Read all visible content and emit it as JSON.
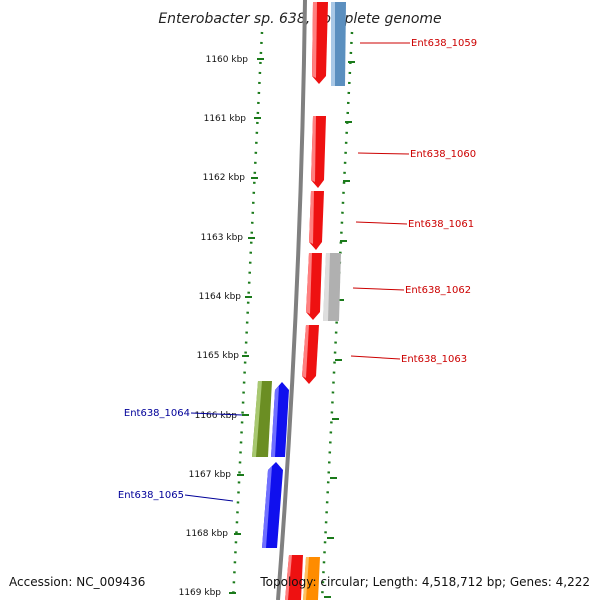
{
  "title": "Enterobacter sp. 638, complete genome",
  "footer": {
    "accession": "Accession: NC_009436",
    "info": "Topology: circular; Length: 4,518,712 bp; Genes: 4,222"
  },
  "colors": {
    "forward_label": "#cc0000",
    "reverse_label": "#000099",
    "ticks": "#1a7a1a",
    "backbone": "#808080"
  },
  "ticks": [
    {
      "label": "1160 kbp"
    },
    {
      "label": "1161 kbp"
    },
    {
      "label": "1162 kbp"
    },
    {
      "label": "1163 kbp"
    },
    {
      "label": "1164 kbp"
    },
    {
      "label": "1165 kbp"
    },
    {
      "label": "1166 kbp"
    },
    {
      "label": "1167 kbp"
    },
    {
      "label": "1168 kbp"
    },
    {
      "label": "1169 kbp"
    }
  ],
  "gene_labels": [
    {
      "text": "Ent638_1059",
      "strand": "forward"
    },
    {
      "text": "Ent638_1060",
      "strand": "forward"
    },
    {
      "text": "Ent638_1061",
      "strand": "forward"
    },
    {
      "text": "Ent638_1062",
      "strand": "forward"
    },
    {
      "text": "Ent638_1063",
      "strand": "forward"
    },
    {
      "text": "Ent638_1064",
      "strand": "reverse"
    },
    {
      "text": "Ent638_1065",
      "strand": "reverse"
    }
  ],
  "features": [
    {
      "color": "#ee1111",
      "strand": "forward"
    },
    {
      "color": "#5b8fbf",
      "strand": "forward"
    },
    {
      "color": "#ee1111",
      "strand": "forward"
    },
    {
      "color": "#ee1111",
      "strand": "forward"
    },
    {
      "color": "#ee1111",
      "strand": "forward"
    },
    {
      "color": "#b0b0b0",
      "strand": "forward"
    },
    {
      "color": "#ee1111",
      "strand": "forward"
    },
    {
      "color": "#6b8e23",
      "strand": "reverse"
    },
    {
      "color": "#1010ee",
      "strand": "reverse"
    },
    {
      "color": "#1010ee",
      "strand": "reverse"
    },
    {
      "color": "#ee1111",
      "strand": "forward"
    },
    {
      "color": "#ff8c00",
      "strand": "forward"
    }
  ]
}
